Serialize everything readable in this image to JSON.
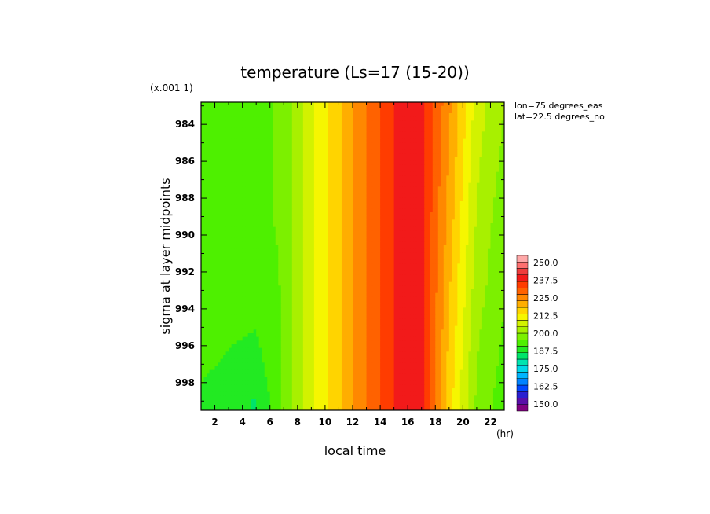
{
  "chart_data": {
    "type": "heatmap",
    "title": "temperature (Ls=17 (15-20))",
    "xlabel": "local time",
    "x_unit": "(hr)",
    "ylabel": "sigma at layer midpoints",
    "y_scale_note": "(x.001 1)",
    "annotations": [
      "lon=75 degrees_eas",
      "lat=22.5 degrees_no"
    ],
    "xlim": [
      1,
      23
    ],
    "ylim": [
      999.5,
      982.8
    ],
    "x_ticks": [
      "2",
      "4",
      "6",
      "8",
      "10",
      "12",
      "14",
      "16",
      "18",
      "20",
      "22"
    ],
    "y_ticks": [
      "984",
      "986",
      "988",
      "990",
      "992",
      "994",
      "996",
      "998"
    ],
    "colorbar": {
      "ticks": [
        "250.0",
        "237.5",
        "225.0",
        "212.5",
        "200.0",
        "187.5",
        "175.0",
        "162.5",
        "150.0"
      ],
      "range": [
        145,
        255
      ],
      "colors_low_to_high": [
        "#800080",
        "#5a0ea8",
        "#2a1fd0",
        "#0048ff",
        "#0083ff",
        "#00b5ff",
        "#00d8e8",
        "#00e4b0",
        "#00e46a",
        "#22ea22",
        "#4ef000",
        "#7cf000",
        "#a8f000",
        "#d2f200",
        "#f6f600",
        "#ffd400",
        "#ffae00",
        "#ff8800",
        "#ff6200",
        "#ff3c00",
        "#f21a1a",
        "#ee3c3c",
        "#ff7070",
        "#ffa8a8"
      ]
    },
    "grid_x": [
      1,
      3,
      5,
      7,
      9,
      11,
      13,
      15,
      17,
      19,
      21,
      23
    ],
    "grid_y": [
      983,
      985,
      987,
      989,
      991,
      993,
      995,
      997,
      999
    ],
    "values": [
      [
        195,
        193,
        193,
        197,
        208,
        217,
        228,
        237,
        238,
        224,
        207,
        200
      ],
      [
        195,
        193,
        193,
        197,
        208,
        217,
        228,
        237,
        238,
        223,
        206,
        199
      ],
      [
        195,
        193,
        193,
        197,
        208,
        217,
        228,
        237,
        238,
        222,
        205,
        198
      ],
      [
        194,
        193,
        193,
        197,
        208,
        217,
        228,
        237,
        238,
        221,
        204,
        197
      ],
      [
        194,
        193,
        193,
        196,
        208,
        217,
        228,
        237,
        238,
        220,
        203,
        196
      ],
      [
        194,
        192,
        192,
        196,
        208,
        217,
        228,
        237,
        238,
        219,
        202,
        196
      ],
      [
        193,
        192,
        191,
        196,
        208,
        217,
        228,
        237,
        238,
        218,
        201,
        195
      ],
      [
        192,
        190,
        189,
        196,
        208,
        217,
        228,
        237,
        238,
        217,
        200,
        194
      ],
      [
        190,
        187,
        186,
        196,
        208,
        217,
        228,
        237,
        238,
        216,
        199,
        193
      ]
    ]
  }
}
